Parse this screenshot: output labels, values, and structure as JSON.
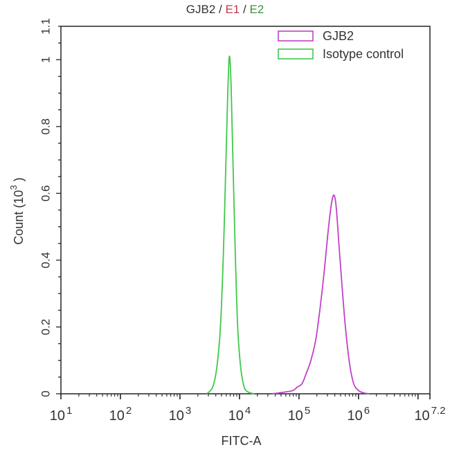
{
  "title": {
    "parts": [
      {
        "text": "GJB2",
        "color": "#333333"
      },
      {
        "text": " / ",
        "color": "#333333"
      },
      {
        "text": "E1",
        "color": "#c0394b"
      },
      {
        "text": " / ",
        "color": "#333333"
      },
      {
        "text": "E2",
        "color": "#3a8f3a"
      }
    ]
  },
  "chart_data": {
    "type": "line",
    "title": "GJB2 / E1 / E2",
    "xlabel": "FITC-A",
    "ylabel": "Count (10^3)",
    "xscale": "log",
    "xlim_log10": [
      1,
      7.2
    ],
    "ylim": [
      0,
      1.1
    ],
    "x_tick_labels": [
      {
        "base": "10",
        "exp": "1",
        "log": 1
      },
      {
        "base": "10",
        "exp": "2",
        "log": 2
      },
      {
        "base": "10",
        "exp": "3",
        "log": 3
      },
      {
        "base": "10",
        "exp": "4",
        "log": 4
      },
      {
        "base": "10",
        "exp": "5",
        "log": 5
      },
      {
        "base": "10",
        "exp": "6",
        "log": 6
      },
      {
        "base": "10",
        "exp": "7.2",
        "log": 7.2
      }
    ],
    "y_ticks": [
      0,
      0.2,
      0.4,
      0.6,
      0.8,
      1,
      1.1
    ],
    "y_tick_labels": [
      "0",
      "0.2",
      "0.4",
      "0.6",
      "0.8",
      "1",
      "1.1"
    ],
    "grid": false,
    "legend_position": "upper right",
    "series": [
      {
        "name": "GJB2",
        "color": "#c040c8",
        "x_log10": [
          4.55,
          4.75,
          4.9,
          4.97,
          5.05,
          5.12,
          5.2,
          5.28,
          5.35,
          5.42,
          5.48,
          5.53,
          5.57,
          5.6,
          5.63,
          5.67,
          5.72,
          5.78,
          5.85,
          5.92,
          6.0,
          6.08,
          6.18
        ],
        "values": [
          0.0,
          0.005,
          0.01,
          0.02,
          0.03,
          0.06,
          0.1,
          0.16,
          0.25,
          0.36,
          0.47,
          0.55,
          0.59,
          0.59,
          0.55,
          0.45,
          0.33,
          0.2,
          0.09,
          0.03,
          0.01,
          0.003,
          0.0
        ]
      },
      {
        "name": "Isotype control",
        "color": "#3fc84a",
        "x_log10": [
          3.45,
          3.55,
          3.62,
          3.68,
          3.73,
          3.77,
          3.8,
          3.83,
          3.86,
          3.89,
          3.93,
          3.97,
          4.02,
          4.08,
          4.15,
          4.25
        ],
        "values": [
          0.0,
          0.02,
          0.08,
          0.2,
          0.42,
          0.68,
          0.88,
          1.01,
          0.92,
          0.7,
          0.42,
          0.2,
          0.08,
          0.02,
          0.005,
          0.0
        ]
      }
    ]
  },
  "legend": {
    "items": [
      {
        "label": "GJB2",
        "color": "#c040c8"
      },
      {
        "label": "Isotype control",
        "color": "#3fc84a"
      }
    ]
  },
  "axes": {
    "x_label": "FITC-A",
    "y_label_main": "Count",
    "y_label_unit_base": "(10",
    "y_label_unit_exp": "3",
    "y_label_unit_close": ")"
  }
}
